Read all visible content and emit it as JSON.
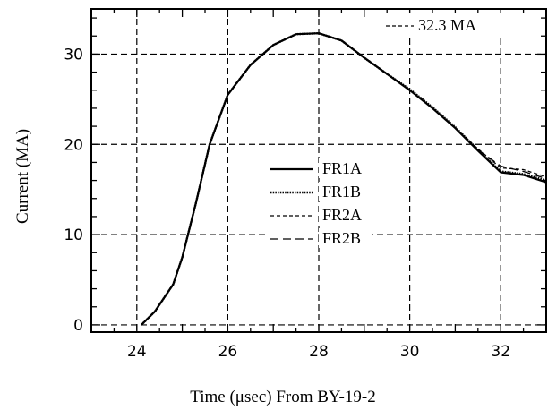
{
  "chart_data": {
    "type": "line",
    "title": "",
    "xlabel": "Time (μsec) From BY-19-2",
    "ylabel": "Current (MA)",
    "xlim": [
      23,
      33
    ],
    "ylim": [
      -0.8,
      35
    ],
    "x_ticks": [
      24,
      26,
      28,
      30,
      32
    ],
    "y_ticks": [
      0,
      10,
      20,
      30
    ],
    "grid": true,
    "grid_style": "dashed",
    "legend_position": "center-right",
    "annotation": {
      "text": "32.3 MA",
      "value": 32.3,
      "line_style": "dashed"
    },
    "series": [
      {
        "name": "FR1A",
        "line_style": "solid",
        "x": [
          24.1,
          24.4,
          24.8,
          25.0,
          25.3,
          25.6,
          26.0,
          26.5,
          27.0,
          27.5,
          28.0,
          28.5,
          29.0,
          29.5,
          30.0,
          30.5,
          31.0,
          31.5,
          32.0,
          32.5,
          33.0
        ],
        "y": [
          0,
          1.5,
          4.5,
          7.5,
          13.5,
          20,
          25.5,
          28.8,
          31.0,
          32.2,
          32.3,
          31.5,
          29.6,
          27.8,
          26.0,
          24.0,
          21.8,
          19.3,
          16.9,
          16.6,
          15.8
        ]
      },
      {
        "name": "FR1B",
        "line_style": "dotted",
        "x": [
          24.1,
          24.4,
          24.8,
          25.0,
          25.3,
          25.6,
          26.0,
          26.5,
          27.0,
          27.5,
          28.0,
          28.5,
          29.0,
          29.5,
          30.0,
          30.5,
          31.0,
          31.5,
          32.0,
          32.5,
          33.0
        ],
        "y": [
          0,
          1.5,
          4.5,
          7.5,
          13.5,
          20,
          25.5,
          28.8,
          31.0,
          32.2,
          32.3,
          31.5,
          29.6,
          27.8,
          26.1,
          24.1,
          21.9,
          19.4,
          17.0,
          16.7,
          16.0
        ]
      },
      {
        "name": "FR2A",
        "line_style": "dashed-short",
        "x": [
          24.1,
          24.4,
          24.8,
          25.0,
          25.3,
          25.6,
          26.0,
          26.5,
          27.0,
          27.5,
          28.0,
          28.5,
          29.0,
          29.5,
          30.0,
          30.5,
          31.0,
          31.5,
          32.0,
          32.5,
          33.0
        ],
        "y": [
          0,
          1.5,
          4.5,
          7.5,
          13.5,
          20,
          25.5,
          28.8,
          31.0,
          32.2,
          32.3,
          31.5,
          29.6,
          27.8,
          26.0,
          24.0,
          21.8,
          19.5,
          17.4,
          17.2,
          16.4
        ]
      },
      {
        "name": "FR2B",
        "line_style": "dashed-long",
        "x": [
          24.1,
          24.4,
          24.8,
          25.0,
          25.3,
          25.6,
          26.0,
          26.5,
          27.0,
          27.5,
          28.0,
          28.5,
          29.0,
          29.5,
          30.0,
          30.5,
          31.0,
          31.5,
          32.0,
          32.5,
          33.0
        ],
        "y": [
          0,
          1.5,
          4.5,
          7.5,
          13.5,
          20,
          25.5,
          28.8,
          31.0,
          32.2,
          32.3,
          31.5,
          29.6,
          27.8,
          26.0,
          24.0,
          21.8,
          19.4,
          17.6,
          17.0,
          16.2
        ]
      }
    ]
  }
}
